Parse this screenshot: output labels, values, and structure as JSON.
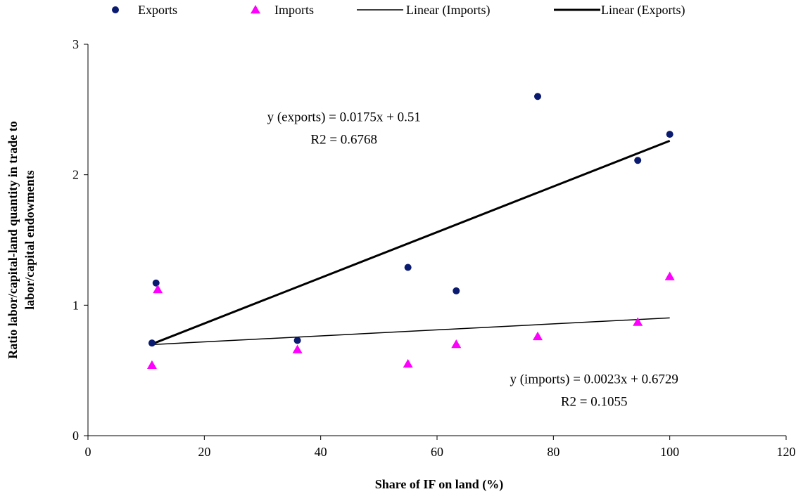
{
  "chart_data": {
    "type": "scatter",
    "title": "",
    "xlabel": "Share of IF on land (%)",
    "ylabel_lines": [
      "Ratio labor/capital-land quantity in trade to",
      "labor/capital endowments"
    ],
    "xlim": [
      0,
      120
    ],
    "ylim": [
      0,
      3
    ],
    "xticks": [
      0,
      20,
      40,
      60,
      80,
      100,
      120
    ],
    "yticks": [
      0,
      1,
      2,
      3
    ],
    "grid": false,
    "legend_position": "top",
    "series": [
      {
        "name": "Exports",
        "marker": "circle",
        "color": "#0a1a6e",
        "points": [
          {
            "x": 11,
            "y": 0.71
          },
          {
            "x": 11.7,
            "y": 1.17
          },
          {
            "x": 36,
            "y": 0.73
          },
          {
            "x": 55,
            "y": 1.29
          },
          {
            "x": 63.3,
            "y": 1.11
          },
          {
            "x": 77.3,
            "y": 2.6
          },
          {
            "x": 94.5,
            "y": 2.11
          },
          {
            "x": 100,
            "y": 2.31
          }
        ]
      },
      {
        "name": "Imports",
        "marker": "triangle",
        "color": "#ff00ff",
        "points": [
          {
            "x": 11,
            "y": 0.54
          },
          {
            "x": 12,
            "y": 1.12
          },
          {
            "x": 36,
            "y": 0.66
          },
          {
            "x": 55,
            "y": 0.55
          },
          {
            "x": 63.3,
            "y": 0.7
          },
          {
            "x": 77.3,
            "y": 0.76
          },
          {
            "x": 94.5,
            "y": 0.87
          },
          {
            "x": 100,
            "y": 1.22
          }
        ]
      }
    ],
    "trendlines": [
      {
        "name": "Linear (Imports)",
        "slope": 0.0023,
        "intercept": 0.6729,
        "x_range": [
          11,
          100
        ],
        "color": "#000000",
        "weight": "thin"
      },
      {
        "name": "Linear (Exports)",
        "slope": 0.0175,
        "intercept": 0.51,
        "x_range": [
          11,
          100
        ],
        "color": "#000000",
        "weight": "thick"
      }
    ],
    "annotations": [
      {
        "lines": [
          "y (exports) = 0.0175x + 0.51",
          "R2 = 0.6768"
        ],
        "anchor_x": 44,
        "anchor_y": 2.41
      },
      {
        "lines": [
          "y (imports) = 0.0023x + 0.6729",
          "R2 = 0.1055"
        ],
        "anchor_x": 87,
        "anchor_y": 0.4
      }
    ]
  }
}
